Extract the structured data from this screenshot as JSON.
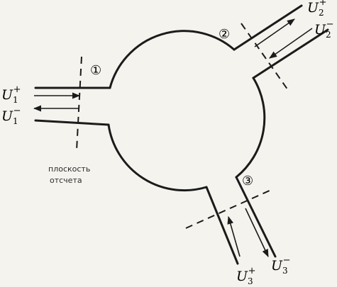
{
  "ports": [
    {
      "marker": "①",
      "incident": {
        "base": "U",
        "sub": "1",
        "sup": "+"
      },
      "reflected": {
        "base": "U",
        "sub": "1",
        "sup": "−"
      }
    },
    {
      "marker": "②",
      "incident": {
        "base": "U",
        "sub": "2",
        "sup": "+"
      },
      "reflected": {
        "base": "U",
        "sub": "2",
        "sup": "−"
      }
    },
    {
      "marker": "③",
      "incident": {
        "base": "U",
        "sub": "3",
        "sup": "+"
      },
      "reflected": {
        "base": "U",
        "sub": "3",
        "sup": "−"
      }
    }
  ],
  "reference_plane_label": {
    "line1": "плоскость",
    "line2": "отсчета"
  }
}
